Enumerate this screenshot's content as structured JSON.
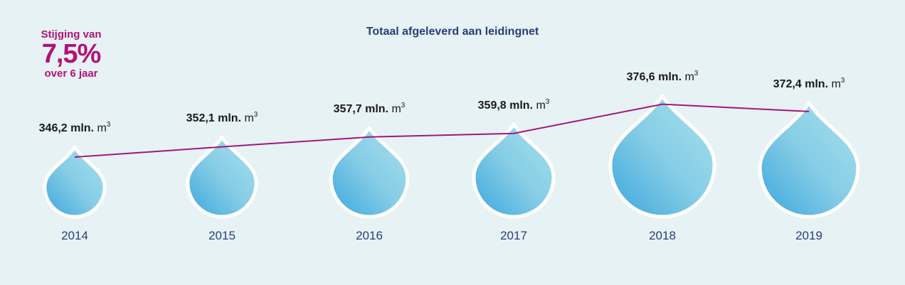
{
  "chart_data": {
    "type": "line",
    "title": "Totaal afgeleverd aan leidingnet",
    "unit": "m",
    "unit_superscript": "3",
    "categories": [
      "2014",
      "2015",
      "2016",
      "2017",
      "2018",
      "2019"
    ],
    "values": [
      346.2,
      352.1,
      357.7,
      359.8,
      376.6,
      372.4
    ],
    "value_labels": [
      "346,2 mln.",
      "352,1 mln.",
      "357,7 mln.",
      "359,8 mln.",
      "376,6 mln.",
      "372,4 mln."
    ],
    "callout": {
      "line1": "Stijging van",
      "big": "7,5%",
      "line2": "over 6 jaar"
    },
    "colors": {
      "line": "#a3177d",
      "drop_light": "#a8e0ec",
      "drop_dark": "#3ba6dc",
      "year_text": "#2a3d7c",
      "callout": "#b3117a",
      "background": "#e6f2f3"
    }
  }
}
